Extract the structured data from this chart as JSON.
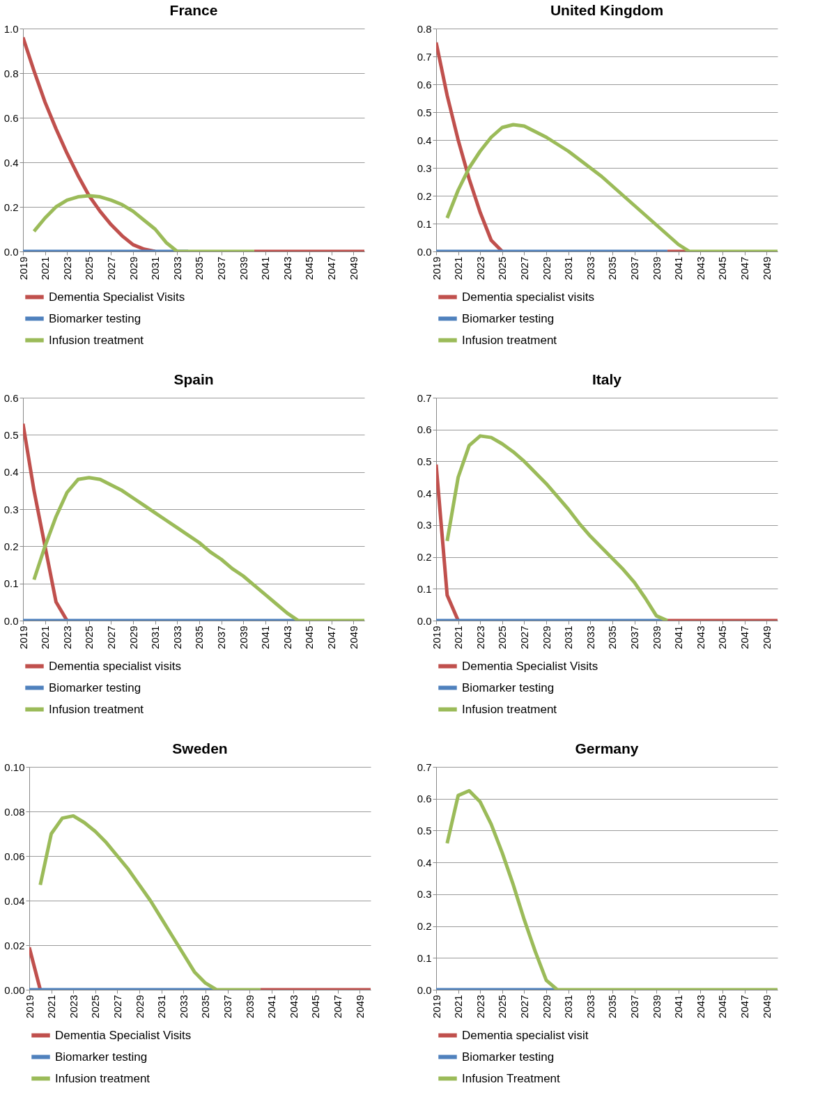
{
  "chart_data": [
    {
      "type": "line",
      "title": "France",
      "x": [
        2019,
        2020,
        2021,
        2022,
        2023,
        2024,
        2025,
        2026,
        2027,
        2028,
        2029,
        2030,
        2031,
        2032,
        2033,
        2034,
        2035,
        2036,
        2037,
        2038,
        2039,
        2040,
        2041,
        2042,
        2043,
        2044,
        2045,
        2046,
        2047,
        2048,
        2049,
        2050
      ],
      "xlim": [
        2019,
        2050
      ],
      "xticks": [
        2019,
        2021,
        2023,
        2025,
        2027,
        2029,
        2031,
        2033,
        2035,
        2037,
        2039,
        2041,
        2043,
        2045,
        2047,
        2049
      ],
      "ylim": [
        0,
        1
      ],
      "yticks": [
        {
          "value": 0,
          "label": "0.0"
        },
        {
          "value": 0.2,
          "label": "0.2"
        },
        {
          "value": 0.4,
          "label": "0.4"
        },
        {
          "value": 0.6,
          "label": "0.6"
        },
        {
          "value": 0.8,
          "label": "0.8"
        },
        {
          "value": 1,
          "label": "1.0"
        }
      ],
      "grid": "y",
      "legend": "bottom",
      "series": [
        {
          "name": "Dementia Specialist Visits",
          "color": "#c0504d",
          "values": [
            0.96,
            0.81,
            0.67,
            0.55,
            0.44,
            0.34,
            0.25,
            0.18,
            0.12,
            0.07,
            0.03,
            0.01,
            0,
            null,
            null,
            null,
            null,
            null,
            null,
            null,
            null,
            0,
            0,
            0,
            0,
            0,
            0,
            0,
            0,
            0,
            0,
            0
          ]
        },
        {
          "name": "Biomarker testing",
          "color": "#4f81bd",
          "values": [
            0,
            0,
            0,
            0,
            0,
            0,
            0,
            0,
            0,
            0,
            0,
            0,
            0,
            0,
            0,
            0,
            null,
            null,
            null,
            null,
            null,
            null,
            null,
            null,
            null,
            null,
            null,
            null,
            null,
            null,
            null,
            null
          ]
        },
        {
          "name": "Infusion treatment",
          "color": "#9bbb59",
          "values": [
            null,
            0.09,
            0.15,
            0.2,
            0.23,
            0.245,
            0.25,
            0.245,
            0.23,
            0.21,
            0.18,
            0.14,
            0.1,
            0.04,
            0,
            0,
            0,
            0,
            0,
            0,
            0,
            0,
            null,
            null,
            null,
            null,
            null,
            null,
            null,
            null,
            null,
            null
          ]
        }
      ]
    },
    {
      "type": "line",
      "title": "United Kingdom",
      "x": [
        2019,
        2020,
        2021,
        2022,
        2023,
        2024,
        2025,
        2026,
        2027,
        2028,
        2029,
        2030,
        2031,
        2032,
        2033,
        2034,
        2035,
        2036,
        2037,
        2038,
        2039,
        2040,
        2041,
        2042,
        2043,
        2044,
        2045,
        2046,
        2047,
        2048,
        2049,
        2050
      ],
      "xlim": [
        2019,
        2050
      ],
      "xticks": [
        2019,
        2021,
        2023,
        2025,
        2027,
        2029,
        2031,
        2033,
        2035,
        2037,
        2039,
        2041,
        2043,
        2045,
        2047,
        2049
      ],
      "ylim": [
        0,
        0.8
      ],
      "yticks": [
        {
          "value": 0,
          "label": "0.0"
        },
        0.1,
        0.2,
        0.3,
        0.4,
        0.5,
        0.6,
        0.7,
        0.8
      ],
      "grid": "y",
      "legend": "bottom",
      "series": [
        {
          "name": "Dementia specialist visits",
          "color": "#c0504d",
          "values": [
            0.75,
            0.56,
            0.4,
            0.26,
            0.14,
            0.04,
            0,
            null,
            null,
            null,
            null,
            null,
            null,
            null,
            null,
            null,
            null,
            null,
            null,
            null,
            null,
            0,
            0,
            0,
            null,
            null,
            null,
            null,
            null,
            null,
            null,
            null
          ]
        },
        {
          "name": "Biomarker testing",
          "color": "#4f81bd",
          "values": [
            0,
            0,
            0,
            0,
            0,
            0,
            0,
            0,
            0,
            0,
            0,
            0,
            0,
            0,
            0,
            0,
            0,
            0,
            0,
            0,
            0,
            0,
            null,
            null,
            null,
            null,
            null,
            null,
            null,
            null,
            null,
            null
          ]
        },
        {
          "name": "Infusion treatment",
          "color": "#9bbb59",
          "values": [
            null,
            0.12,
            0.22,
            0.3,
            0.36,
            0.41,
            0.445,
            0.455,
            0.45,
            0.43,
            0.41,
            0.385,
            0.36,
            0.33,
            0.3,
            0.27,
            0.235,
            0.2,
            0.165,
            0.13,
            0.095,
            0.06,
            0.025,
            0,
            0,
            0,
            0,
            0,
            0,
            0,
            0,
            0
          ]
        }
      ]
    },
    {
      "type": "line",
      "title": "Spain",
      "x": [
        2019,
        2020,
        2021,
        2022,
        2023,
        2024,
        2025,
        2026,
        2027,
        2028,
        2029,
        2030,
        2031,
        2032,
        2033,
        2034,
        2035,
        2036,
        2037,
        2038,
        2039,
        2040,
        2041,
        2042,
        2043,
        2044,
        2045,
        2046,
        2047,
        2048,
        2049,
        2050
      ],
      "xlim": [
        2019,
        2050
      ],
      "xticks": [
        2019,
        2021,
        2023,
        2025,
        2027,
        2029,
        2031,
        2033,
        2035,
        2037,
        2039,
        2041,
        2043,
        2045,
        2047,
        2049
      ],
      "ylim": [
        0,
        0.6
      ],
      "yticks": [
        {
          "value": 0,
          "label": "0.0"
        },
        0.1,
        0.2,
        0.3,
        0.4,
        0.5,
        0.6
      ],
      "grid": "y",
      "legend": "bottom",
      "series": [
        {
          "name": "Dementia specialist visits",
          "color": "#c0504d",
          "values": [
            0.53,
            0.35,
            0.2,
            0.05,
            0,
            null,
            null,
            null,
            null,
            null,
            null,
            null,
            null,
            null,
            null,
            null,
            null,
            null,
            null,
            null,
            null,
            null,
            null,
            null,
            null,
            null,
            null,
            null,
            null,
            null,
            null,
            null
          ]
        },
        {
          "name": "Biomarker testing",
          "color": "#4f81bd",
          "values": [
            0,
            0,
            0,
            0,
            0,
            0,
            0,
            0,
            0,
            0,
            0,
            0,
            0,
            0,
            0,
            0,
            0,
            0,
            0,
            0,
            0,
            0,
            0,
            0,
            0,
            0,
            null,
            null,
            null,
            null,
            null,
            null
          ]
        },
        {
          "name": "Infusion treatment",
          "color": "#9bbb59",
          "values": [
            null,
            0.11,
            0.2,
            0.28,
            0.345,
            0.38,
            0.385,
            0.38,
            0.365,
            0.35,
            0.33,
            0.31,
            0.29,
            0.27,
            0.25,
            0.23,
            0.21,
            0.185,
            0.165,
            0.14,
            0.12,
            0.095,
            0.07,
            0.045,
            0.02,
            0,
            0,
            0,
            0,
            0,
            0,
            0
          ]
        }
      ]
    },
    {
      "type": "line",
      "title": "Italy",
      "x": [
        2019,
        2020,
        2021,
        2022,
        2023,
        2024,
        2025,
        2026,
        2027,
        2028,
        2029,
        2030,
        2031,
        2032,
        2033,
        2034,
        2035,
        2036,
        2037,
        2038,
        2039,
        2040,
        2041,
        2042,
        2043,
        2044,
        2045,
        2046,
        2047,
        2048,
        2049,
        2050
      ],
      "xlim": [
        2019,
        2050
      ],
      "xticks": [
        2019,
        2021,
        2023,
        2025,
        2027,
        2029,
        2031,
        2033,
        2035,
        2037,
        2039,
        2041,
        2043,
        2045,
        2047,
        2049
      ],
      "ylim": [
        0,
        0.7
      ],
      "yticks": [
        {
          "value": 0,
          "label": "0.0"
        },
        0.1,
        0.2,
        0.3,
        0.4,
        0.5,
        0.6,
        0.7
      ],
      "grid": "y",
      "legend": "bottom",
      "series": [
        {
          "name": "Dementia Specialist Visits",
          "color": "#c0504d",
          "values": [
            0.49,
            0.08,
            0,
            null,
            null,
            null,
            null,
            null,
            null,
            null,
            null,
            null,
            null,
            null,
            null,
            null,
            null,
            null,
            null,
            null,
            null,
            0,
            0,
            0,
            0,
            0,
            0,
            0,
            0,
            0,
            0,
            0
          ]
        },
        {
          "name": "Biomarker testing",
          "color": "#4f81bd",
          "values": [
            0,
            0,
            0,
            0,
            0,
            0,
            0,
            0,
            0,
            0,
            0,
            0,
            0,
            0,
            0,
            0,
            0,
            0,
            0,
            0,
            0,
            0,
            null,
            null,
            null,
            null,
            null,
            null,
            null,
            null,
            null,
            null
          ]
        },
        {
          "name": "Infusion treatment",
          "color": "#9bbb59",
          "values": [
            null,
            0.25,
            0.45,
            0.55,
            0.58,
            0.575,
            0.555,
            0.53,
            0.5,
            0.465,
            0.43,
            0.39,
            0.35,
            0.305,
            0.265,
            0.23,
            0.195,
            0.16,
            0.12,
            0.07,
            0.015,
            0,
            null,
            null,
            null,
            null,
            null,
            null,
            null,
            null,
            null,
            null
          ]
        }
      ]
    },
    {
      "type": "line",
      "title": "Sweden",
      "x": [
        2019,
        2020,
        2021,
        2022,
        2023,
        2024,
        2025,
        2026,
        2027,
        2028,
        2029,
        2030,
        2031,
        2032,
        2033,
        2034,
        2035,
        2036,
        2037,
        2038,
        2039,
        2040,
        2041,
        2042,
        2043,
        2044,
        2045,
        2046,
        2047,
        2048,
        2049,
        2050
      ],
      "xlim": [
        2019,
        2050
      ],
      "xticks": [
        2019,
        2021,
        2023,
        2025,
        2027,
        2029,
        2031,
        2033,
        2035,
        2037,
        2039,
        2041,
        2043,
        2045,
        2047,
        2049
      ],
      "ylim": [
        0,
        0.1
      ],
      "yticks": [
        {
          "value": 0,
          "label": "0.00"
        },
        {
          "value": 0.02,
          "label": "0.02"
        },
        {
          "value": 0.04,
          "label": "0.04"
        },
        {
          "value": 0.06,
          "label": "0.06"
        },
        {
          "value": 0.08,
          "label": "0.08"
        },
        {
          "value": 0.1,
          "label": "0.10"
        }
      ],
      "grid": "y",
      "legend": "bottom",
      "series": [
        {
          "name": "Dementia Specialist Visits",
          "color": "#c0504d",
          "values": [
            0.019,
            0,
            null,
            null,
            null,
            null,
            null,
            null,
            null,
            null,
            null,
            null,
            null,
            null,
            null,
            null,
            null,
            null,
            null,
            null,
            null,
            0,
            0,
            0,
            0,
            0,
            0,
            0,
            0,
            0,
            0,
            0
          ]
        },
        {
          "name": "Biomarker testing",
          "color": "#4f81bd",
          "values": [
            0,
            0,
            0,
            0,
            0,
            0,
            0,
            0,
            0,
            0,
            0,
            0,
            0,
            0,
            0,
            0,
            0,
            0,
            null,
            null,
            null,
            null,
            null,
            null,
            null,
            null,
            null,
            null,
            null,
            null,
            null,
            null
          ]
        },
        {
          "name": "Infusion treatment",
          "color": "#9bbb59",
          "values": [
            null,
            0.047,
            0.07,
            0.077,
            0.078,
            0.075,
            0.071,
            0.066,
            0.06,
            0.054,
            0.047,
            0.04,
            0.032,
            0.024,
            0.016,
            0.008,
            0.003,
            0,
            0,
            0,
            0,
            0,
            null,
            null,
            null,
            null,
            null,
            null,
            null,
            null,
            null,
            null
          ]
        }
      ]
    },
    {
      "type": "line",
      "title": "Germany",
      "x": [
        2019,
        2020,
        2021,
        2022,
        2023,
        2024,
        2025,
        2026,
        2027,
        2028,
        2029,
        2030,
        2031,
        2032,
        2033,
        2034,
        2035,
        2036,
        2037,
        2038,
        2039,
        2040,
        2041,
        2042,
        2043,
        2044,
        2045,
        2046,
        2047,
        2048,
        2049,
        2050
      ],
      "xlim": [
        2019,
        2050
      ],
      "xticks": [
        2019,
        2021,
        2023,
        2025,
        2027,
        2029,
        2031,
        2033,
        2035,
        2037,
        2039,
        2041,
        2043,
        2045,
        2047,
        2049
      ],
      "ylim": [
        0,
        0.7
      ],
      "yticks": [
        {
          "value": 0,
          "label": "0.0"
        },
        0.1,
        0.2,
        0.3,
        0.4,
        0.5,
        0.6,
        0.7
      ],
      "grid": "y",
      "legend": "bottom",
      "series": [
        {
          "name": "Dementia specialist visit",
          "color": "#c0504d",
          "values": [
            null,
            null,
            null,
            null,
            null,
            null,
            null,
            null,
            null,
            null,
            null,
            null,
            null,
            null,
            null,
            null,
            null,
            null,
            null,
            null,
            null,
            null,
            null,
            null,
            null,
            null,
            null,
            null,
            null,
            null,
            null,
            null
          ]
        },
        {
          "name": "Biomarker testing",
          "color": "#4f81bd",
          "values": [
            0,
            0,
            0,
            0,
            0,
            0,
            0,
            0,
            0,
            0,
            0,
            0,
            null,
            null,
            null,
            null,
            null,
            null,
            null,
            null,
            null,
            null,
            null,
            null,
            null,
            null,
            null,
            null,
            null,
            null,
            null,
            null
          ]
        },
        {
          "name": "Infusion Treatment",
          "color": "#9bbb59",
          "values": [
            null,
            0.46,
            0.61,
            0.625,
            0.59,
            0.52,
            0.43,
            0.33,
            0.22,
            0.12,
            0.03,
            0,
            0,
            0,
            0,
            0,
            0,
            0,
            0,
            0,
            0,
            0,
            0,
            0,
            0,
            0,
            0,
            0,
            0,
            0,
            0,
            0
          ]
        }
      ]
    }
  ]
}
